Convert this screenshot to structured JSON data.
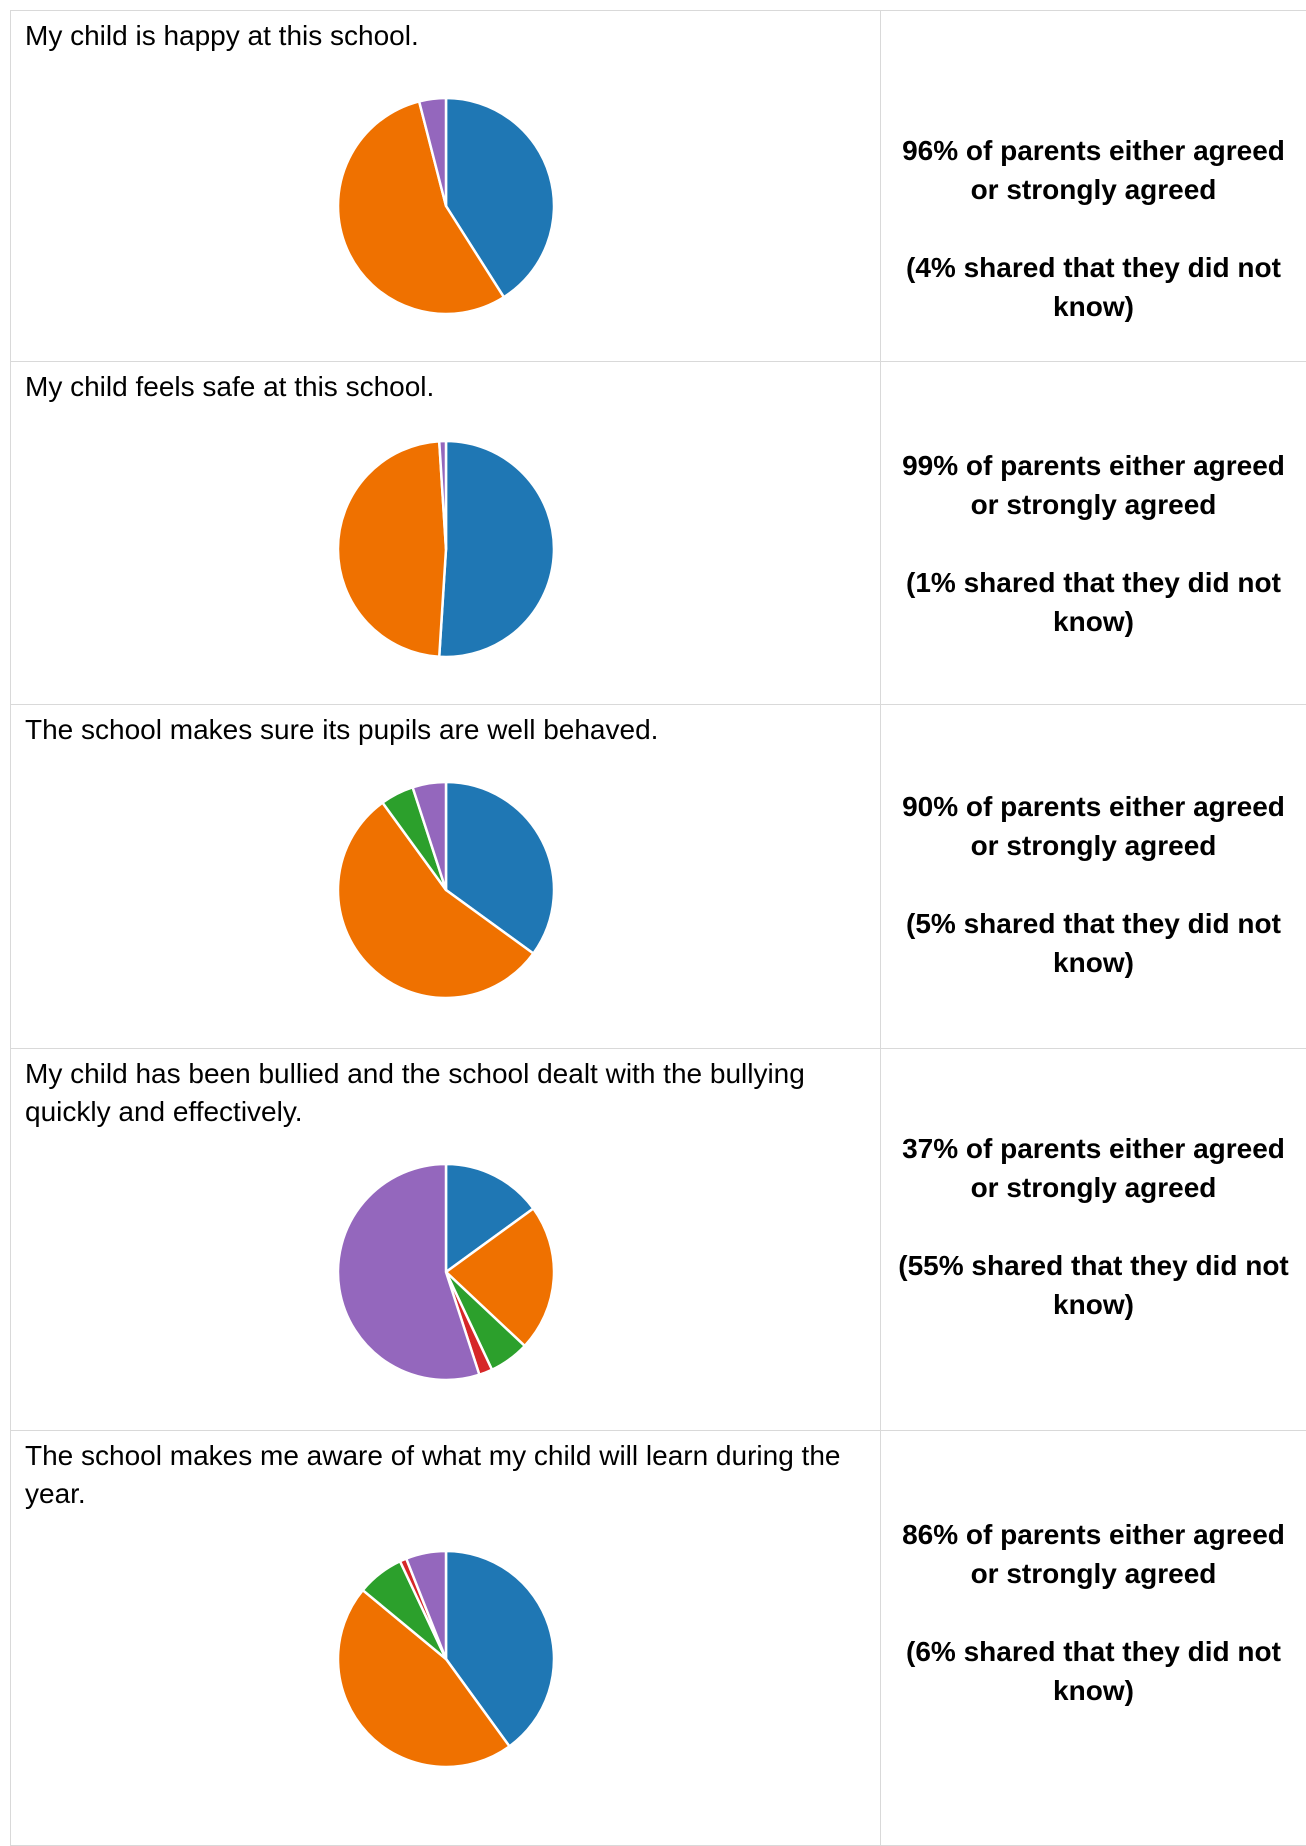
{
  "colors": {
    "strongly_agree": "#1f77b4",
    "agree": "#ef7100",
    "disagree": "#2ca02c",
    "strongly_disagree": "#d62728",
    "dont_know": "#9467bd"
  },
  "rows": [
    {
      "question": "My child is happy at this school.",
      "summary_main": "96% of parents either agreed or strongly agreed",
      "summary_note": "(4% shared that they did not know)"
    },
    {
      "question": "My child feels safe at this school.",
      "summary_main": "99% of parents either agreed or strongly agreed",
      "summary_note": "(1% shared that they did not know)"
    },
    {
      "question": "The school makes sure its pupils are well behaved.",
      "summary_main": "90% of parents either agreed or strongly agreed",
      "summary_note": "(5% shared that they did not know)"
    },
    {
      "question": "My child has been bullied and the school dealt with the bullying quickly and effectively.",
      "summary_main": "37% of parents either agreed or strongly agreed",
      "summary_note": "(55% shared that they did not know)"
    },
    {
      "question": "The school makes me aware of what my child will learn during the year.",
      "summary_main": "86% of parents either agreed or strongly agreed",
      "summary_note": "(6% shared that they did not know)"
    }
  ],
  "chart_data": [
    {
      "type": "pie",
      "title": "",
      "slices": [
        {
          "category": "strongly_agree",
          "value": 41
        },
        {
          "category": "agree",
          "value": 55
        },
        {
          "category": "dont_know",
          "value": 4
        }
      ]
    },
    {
      "type": "pie",
      "title": "",
      "slices": [
        {
          "category": "strongly_agree",
          "value": 51
        },
        {
          "category": "agree",
          "value": 48
        },
        {
          "category": "dont_know",
          "value": 1
        }
      ]
    },
    {
      "type": "pie",
      "title": "",
      "slices": [
        {
          "category": "strongly_agree",
          "value": 35
        },
        {
          "category": "agree",
          "value": 55
        },
        {
          "category": "disagree",
          "value": 5
        },
        {
          "category": "dont_know",
          "value": 5
        }
      ]
    },
    {
      "type": "pie",
      "title": "",
      "slices": [
        {
          "category": "strongly_agree",
          "value": 15
        },
        {
          "category": "agree",
          "value": 22
        },
        {
          "category": "disagree",
          "value": 6
        },
        {
          "category": "strongly_disagree",
          "value": 2
        },
        {
          "category": "dont_know",
          "value": 55
        }
      ]
    },
    {
      "type": "pie",
      "title": "",
      "slices": [
        {
          "category": "strongly_agree",
          "value": 40
        },
        {
          "category": "agree",
          "value": 46
        },
        {
          "category": "disagree",
          "value": 7
        },
        {
          "category": "strongly_disagree",
          "value": 1
        },
        {
          "category": "dont_know",
          "value": 6
        }
      ]
    }
  ]
}
